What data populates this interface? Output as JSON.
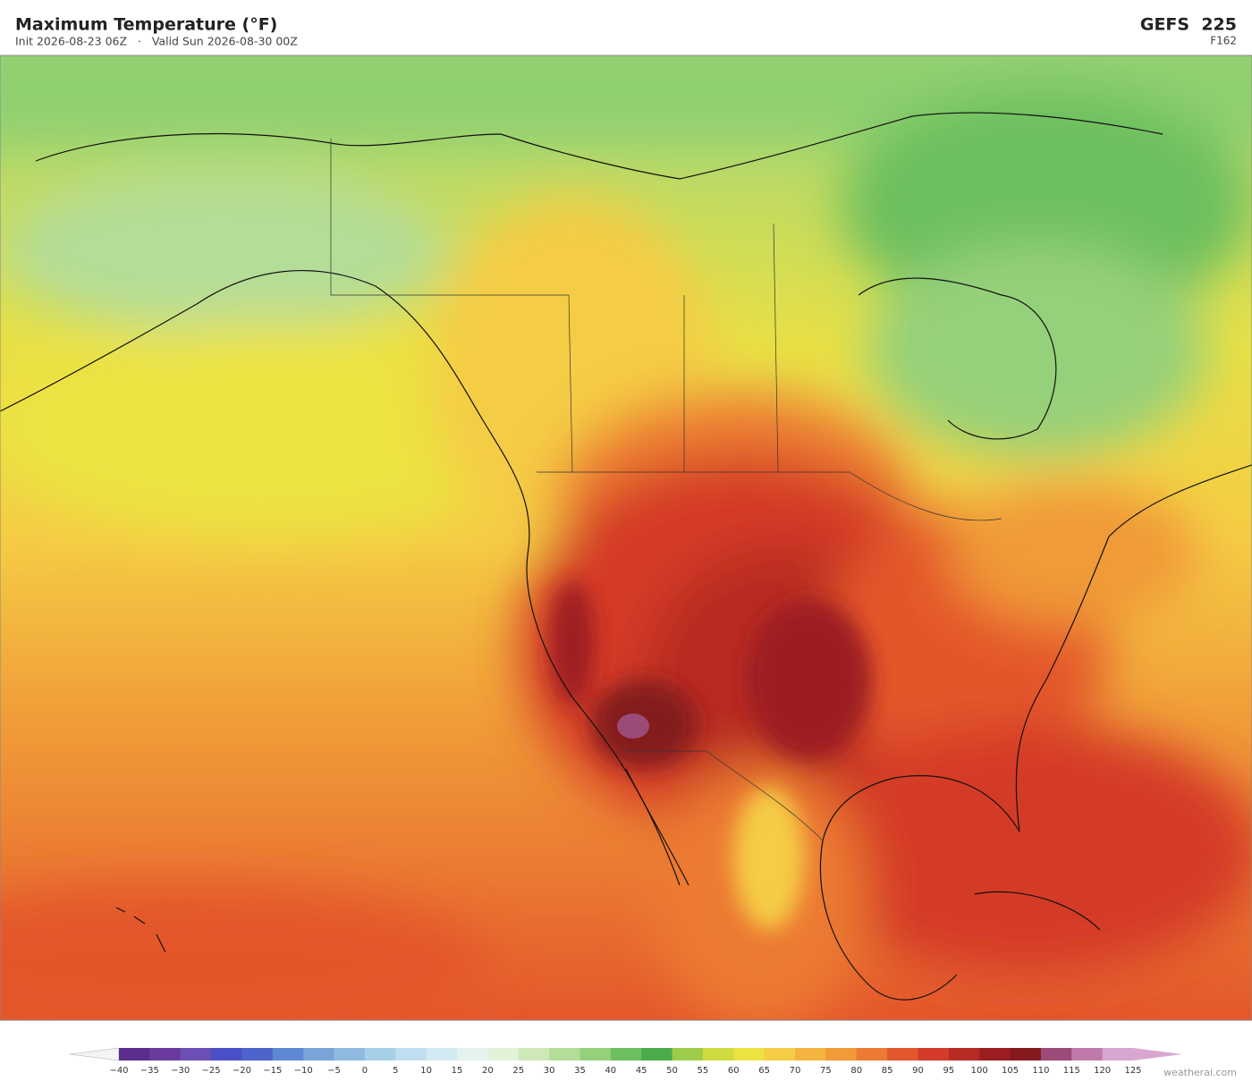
{
  "header": {
    "title": "Maximum Temperature  (°F)",
    "subtitle": "Init 2026-08-23 06Z   ·   Valid Sun 2026-08-30 00Z",
    "model": "GEFS  225",
    "forecast_hour": "F162"
  },
  "colorbar": {
    "ticks": [
      {
        "value": -40,
        "label": "−40"
      },
      {
        "value": -35,
        "label": "−35"
      },
      {
        "value": -30,
        "label": "−30"
      },
      {
        "value": -25,
        "label": "−25"
      },
      {
        "value": -20,
        "label": "−20"
      },
      {
        "value": -15,
        "label": "−15"
      },
      {
        "value": -10,
        "label": "−10"
      },
      {
        "value": -5,
        "label": "−5"
      },
      0,
      5,
      10,
      15,
      20,
      25,
      30,
      35,
      40,
      45,
      50,
      55,
      60,
      65,
      70,
      75,
      80,
      85,
      90,
      95,
      100,
      105,
      110,
      115,
      120,
      125
    ],
    "colors": [
      "#5a2d8c",
      "#6a3a9e",
      "#6b4fb5",
      "#4a4fc8",
      "#4e62cc",
      "#5e88d2",
      "#78a4d8",
      "#8fbadf",
      "#a6cfe8",
      "#bfdff0",
      "#d2e9f2",
      "#e4f2f0",
      "#e2f2d6",
      "#cfe8b8",
      "#b4dd98",
      "#95d07a",
      "#6dbf5e",
      "#4aab4a",
      "#9ccc4a",
      "#cfdb3e",
      "#ece343",
      "#f5cc44",
      "#f4b33e",
      "#f09a38",
      "#ec7a32",
      "#e4572c",
      "#d43b28",
      "#b82a24",
      "#9c1e20",
      "#841a1e",
      "#9c4a78",
      "#c07aaa",
      "#d8a6d0"
    ],
    "under_color": "#f4f4f4",
    "over_color": "#d8a6d0"
  },
  "footer": {
    "credit": "weatherai.com"
  }
}
